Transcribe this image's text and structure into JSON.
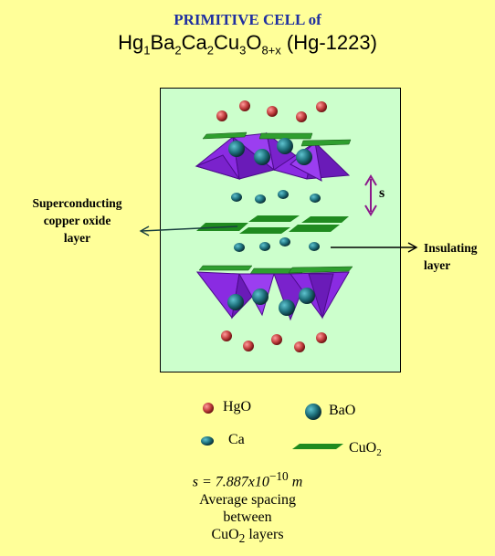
{
  "title": {
    "line1": "PRIMITIVE CELL  of",
    "formula": {
      "hg": "Hg",
      "n1": "1",
      "ba": "Ba",
      "n2": "2",
      "ca": "Ca",
      "n3": "2",
      "cu": "Cu",
      "n4": "3",
      "o": "O",
      "n5": "8+x",
      "name": " (Hg-1223)"
    }
  },
  "labels": {
    "superconducting": [
      "Superconducting",
      "copper oxide",
      "layer"
    ],
    "insulating": [
      "Insulating",
      "layer"
    ],
    "spacing_symbol": "s"
  },
  "legend": {
    "hgo": "HgO",
    "bao": "BaO",
    "ca": "Ca",
    "cuo2_base": "CuO",
    "cuo2_sub": "2"
  },
  "spacing_formula": {
    "prefix": "s = 7.887x10",
    "exponent": "−10",
    "unit": "m"
  },
  "caption": {
    "line1": "Average spacing",
    "line2": "between",
    "line3_base": "CuO",
    "line3_sub": "2",
    "line3_rest": " layers"
  },
  "colors": {
    "background": "#ffff99",
    "cell": "#ccffcc",
    "title": "#1f2fa0",
    "hgo": "#b83a3a",
    "bao": "#1d6f7a",
    "cuo2": "#1f8a1f",
    "pyramid": "#8a2be2",
    "arrow": "#8b1a8b"
  }
}
